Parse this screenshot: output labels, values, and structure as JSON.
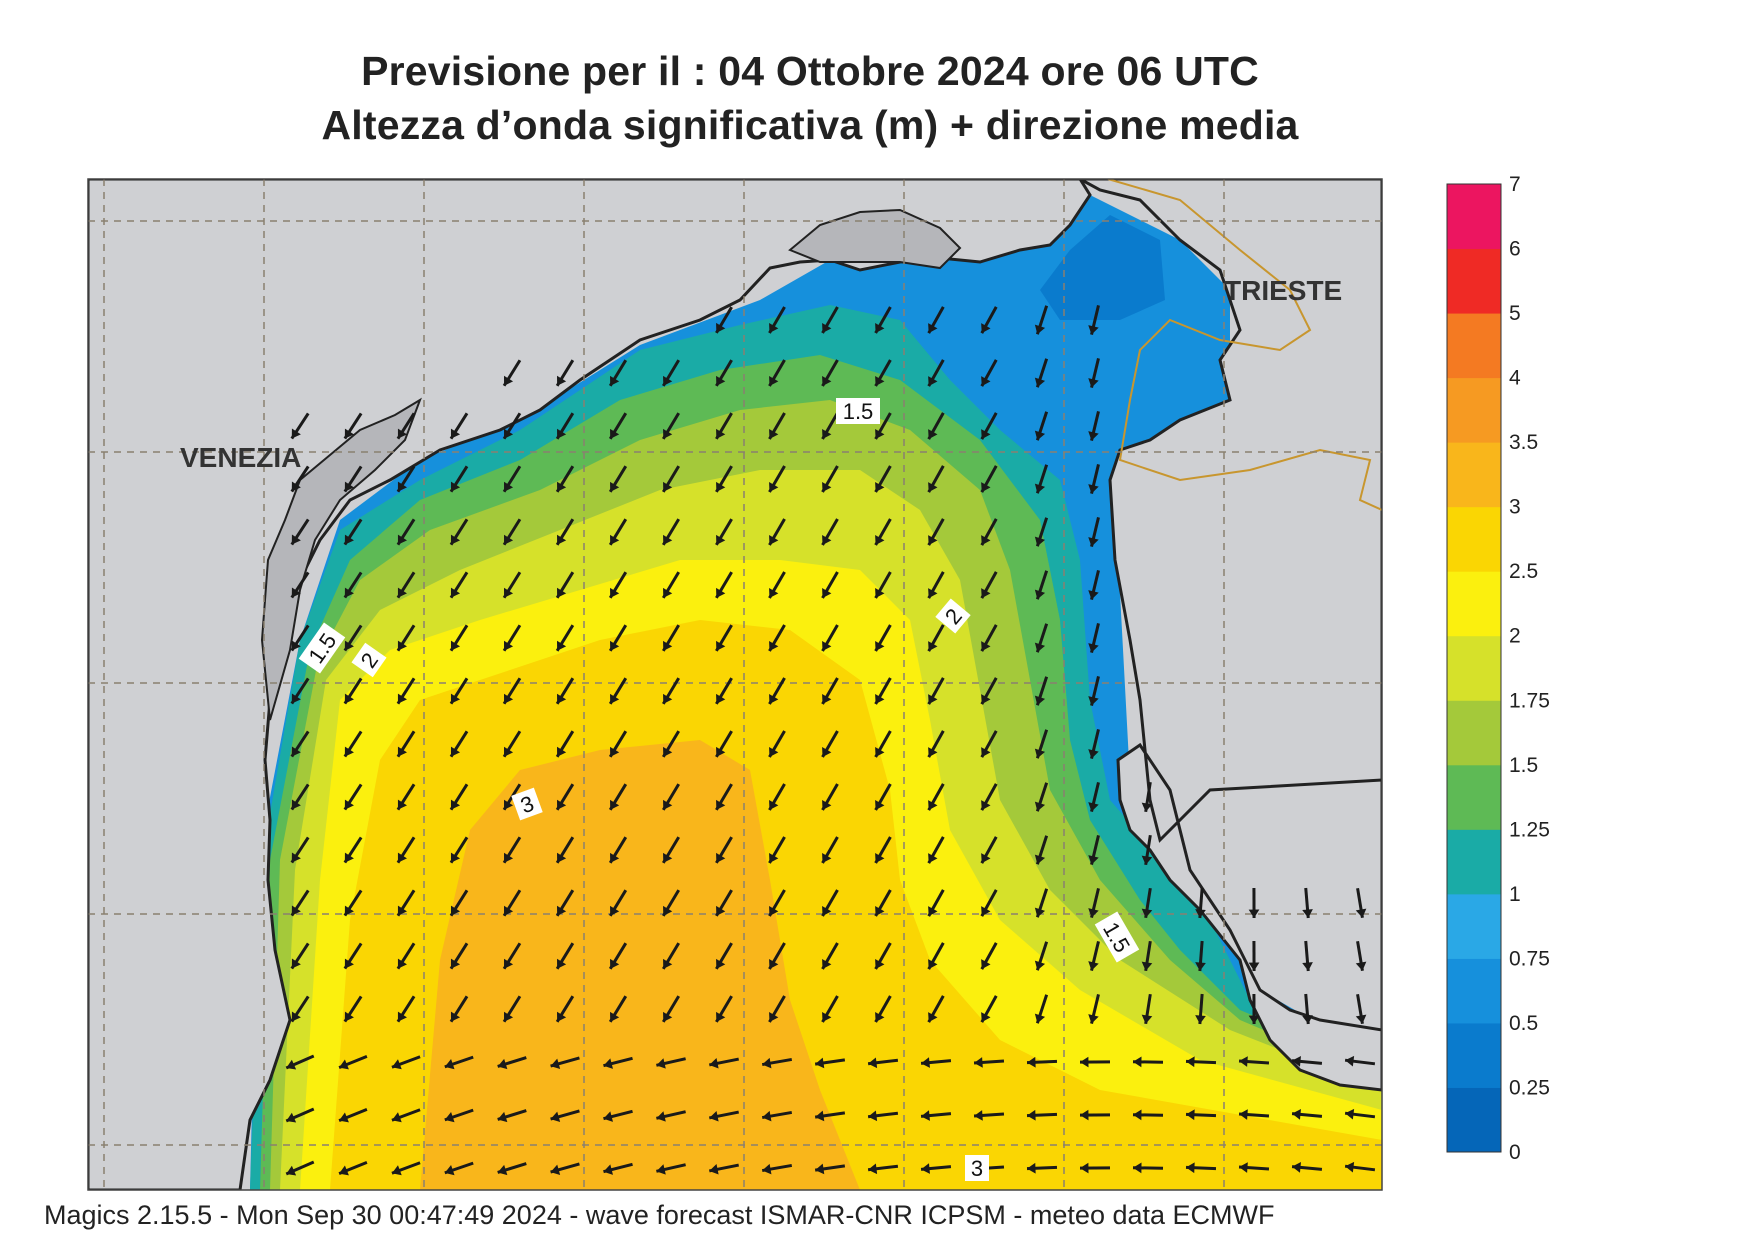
{
  "title": {
    "line1": "Previsione per il  :  04  Ottobre  2024   ore 06 UTC",
    "line2": "Altezza d’onda significativa (m) + direzione media"
  },
  "places": {
    "venezia": "VENEZIA",
    "trieste": "TRIESTE"
  },
  "contour_labels": [
    "1.5",
    "1.5",
    "2",
    "2",
    "3",
    "1.5",
    "3"
  ],
  "colorbar": {
    "ticks": [
      "0",
      "0.25",
      "0.5",
      "0.75",
      "1",
      "1.25",
      "1.5",
      "1.75",
      "2",
      "2.5",
      "3",
      "3.5",
      "4",
      "5",
      "6",
      "7"
    ],
    "colors": [
      "#0566b8",
      "#0a7bcd",
      "#1690dc",
      "#2aa8e6",
      "#1aaba6",
      "#5eba55",
      "#a4c93a",
      "#d6e12a",
      "#fbf00e",
      "#fad603",
      "#f9b61b",
      "#f69a22",
      "#f47a22",
      "#ef2a25",
      "#ec1560"
    ]
  },
  "palette": {
    "land": "#cfd0d3",
    "coast": "#222222",
    "grid": "#8a8070",
    "border": "#c8962e",
    "arrow": "#1a1a1a"
  },
  "footer": "Magics 2.15.5 - Mon Sep 30 00:47:49 2024 - wave forecast  ISMAR-CNR  ICPSM - meteo data   ECMWF"
}
